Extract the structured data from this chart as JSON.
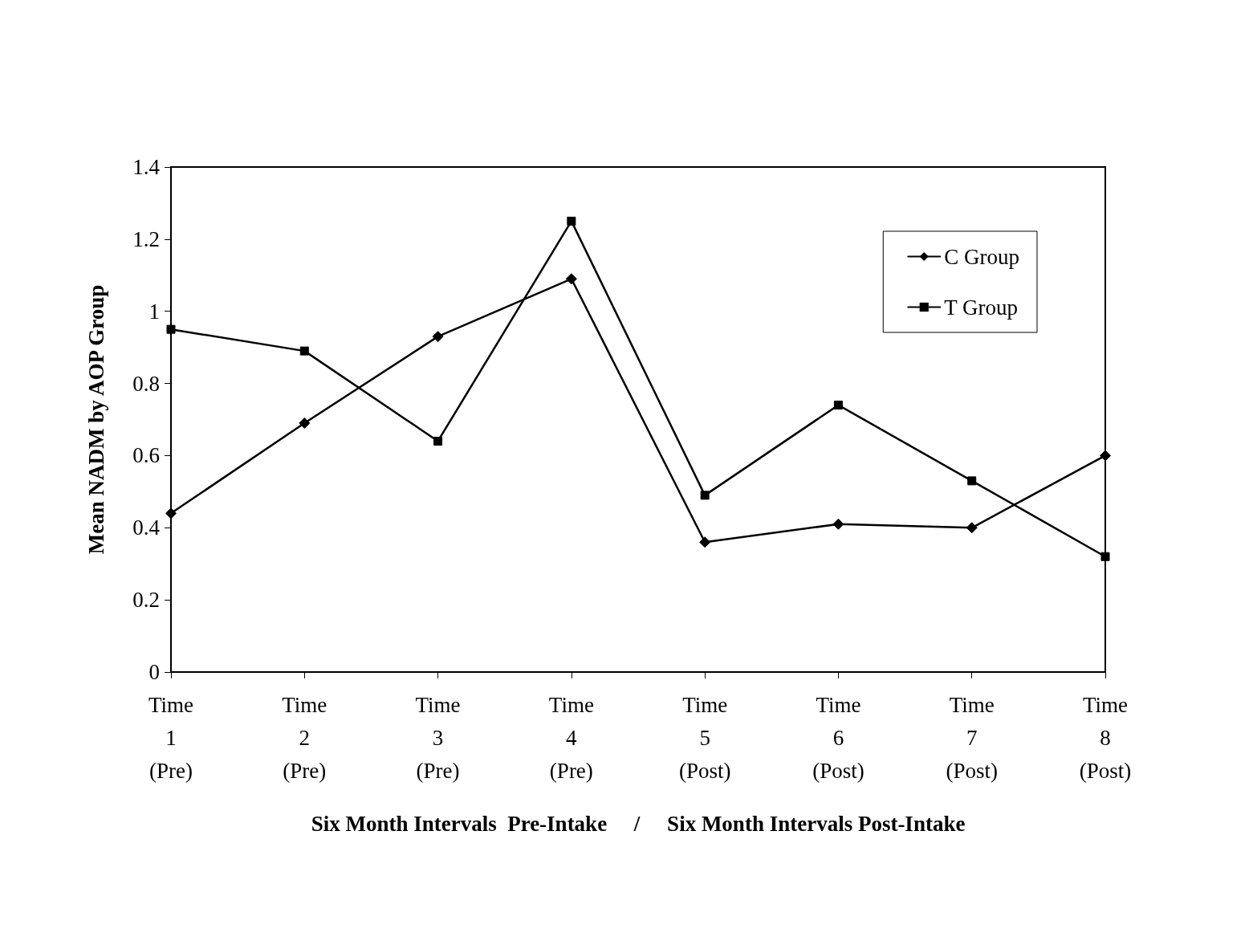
{
  "chart_data": {
    "type": "line",
    "xlabel": "Six Month Intervals  Pre-Intake     /     Six Month Intervals Post-Intake",
    "ylabel": "Mean NADM by AOP Group",
    "categories": [
      "Time\n1\n(Pre)",
      "Time\n2\n(Pre)",
      "Time\n3\n(Pre)",
      "Time\n4\n(Pre)",
      "Time\n5\n(Post)",
      "Time\n6\n(Post)",
      "Time\n7\n(Post)",
      "Time\n8\n(Post)"
    ],
    "series": [
      {
        "name": "C Group",
        "color": "#000000",
        "marker": "diamond",
        "values": [
          0.44,
          0.69,
          0.93,
          1.09,
          0.36,
          0.41,
          0.4,
          0.6
        ]
      },
      {
        "name": "T Group",
        "color": "#000000",
        "marker": "square",
        "values": [
          0.95,
          0.89,
          0.64,
          1.25,
          0.49,
          0.74,
          0.53,
          0.32
        ]
      }
    ],
    "ylim": [
      0,
      1.4
    ],
    "yticks": [
      0,
      0.2,
      0.4,
      0.6,
      0.8,
      1,
      1.2,
      1.4
    ],
    "grid": false,
    "legend": "top right",
    "line_style": "solid"
  }
}
